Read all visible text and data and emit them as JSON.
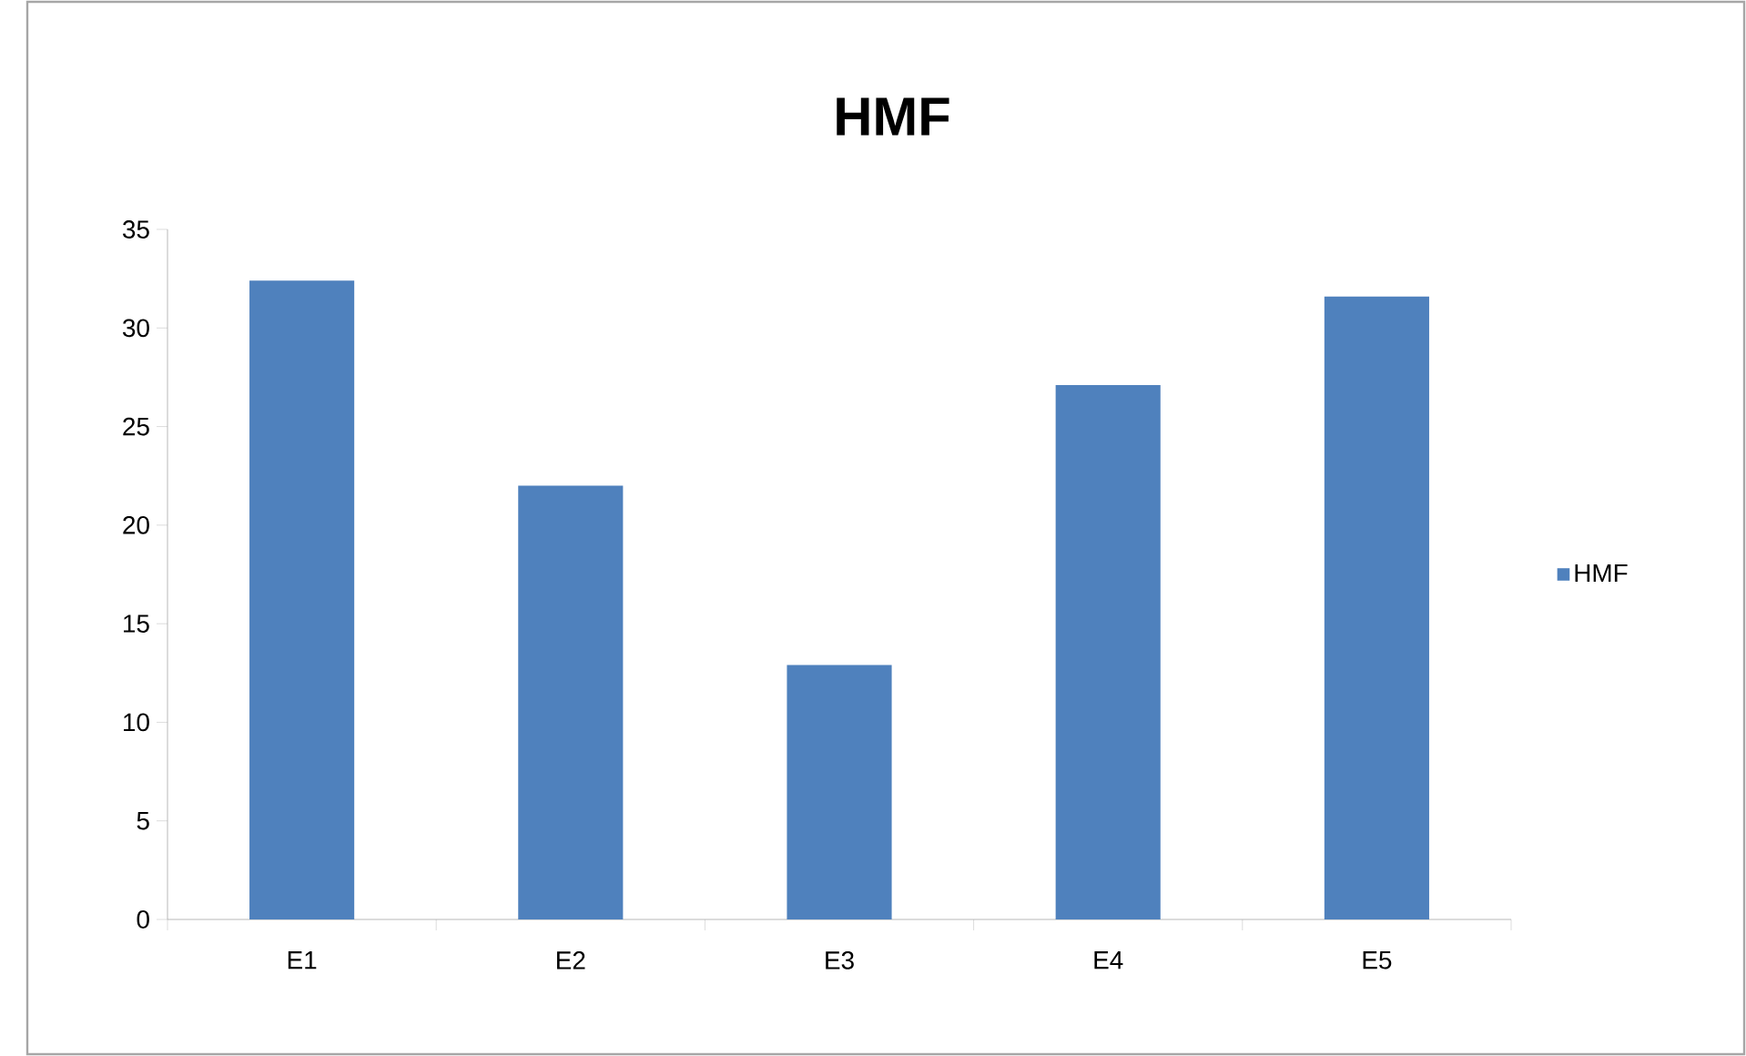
{
  "chart_data": {
    "type": "bar",
    "title": "HMF",
    "categories": [
      "E1",
      "E2",
      "E3",
      "E4",
      "E5"
    ],
    "series": [
      {
        "name": "HMF",
        "color": "#4f81bd",
        "values": [
          32.4,
          22.0,
          12.9,
          27.1,
          31.6
        ]
      }
    ],
    "ylim": [
      0,
      35
    ],
    "yticks": [
      0,
      5,
      10,
      15,
      20,
      25,
      30,
      35
    ],
    "grid": false,
    "legend": "right"
  }
}
